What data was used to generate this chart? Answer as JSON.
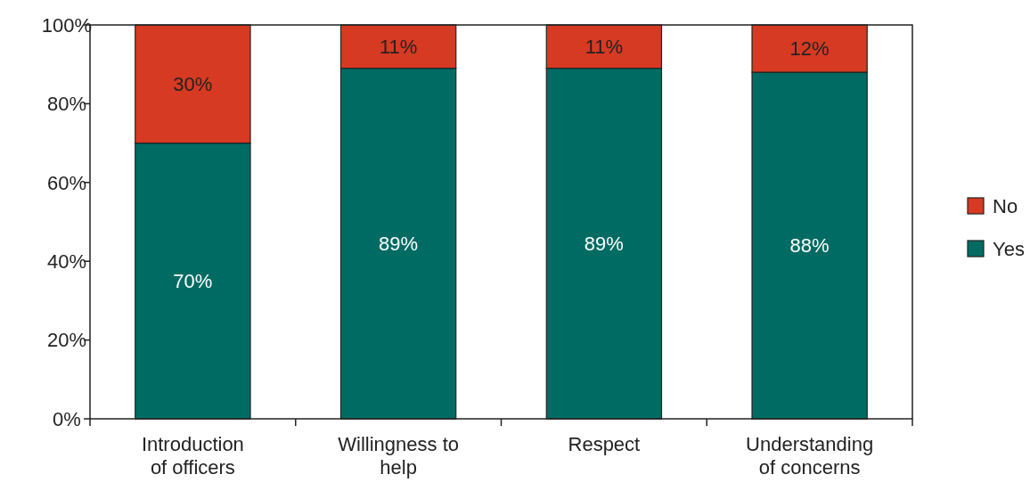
{
  "chart_data": {
    "type": "bar",
    "stacked": true,
    "categories": [
      "Introduction of officers",
      "Willingness to help",
      "Respect",
      "Understanding of concerns"
    ],
    "series": [
      {
        "name": "Yes",
        "color": "#006b63",
        "values": [
          70,
          89,
          89,
          88
        ],
        "value_labels": [
          "70%",
          "89%",
          "89%",
          "88%"
        ]
      },
      {
        "name": "No",
        "color": "#d63a22",
        "values": [
          30,
          11,
          11,
          12
        ],
        "value_labels": [
          "30%",
          "11%",
          "11%",
          "12%"
        ]
      }
    ],
    "ylim": [
      0,
      100
    ],
    "yticks": [
      {
        "value": 0,
        "label": "0%"
      },
      {
        "value": 20,
        "label": "20%"
      },
      {
        "value": 40,
        "label": "40%"
      },
      {
        "value": 60,
        "label": "60%"
      },
      {
        "value": 80,
        "label": "80%"
      },
      {
        "value": 100,
        "label": "100%"
      }
    ],
    "grid": false,
    "legend": "right"
  }
}
